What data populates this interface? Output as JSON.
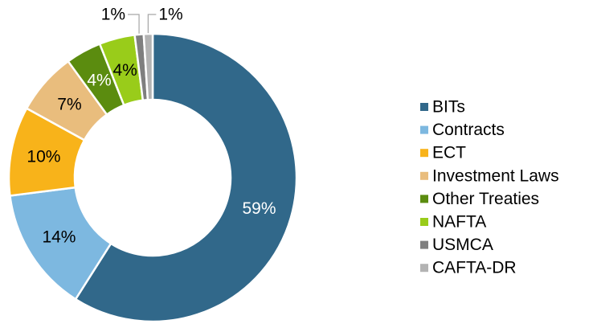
{
  "chart_data": {
    "type": "donut",
    "categories": [
      "BITs",
      "Contracts",
      "ECT",
      "Investment Laws",
      "Other Treaties",
      "NAFTA",
      "USMCA",
      "CAFTA-DR"
    ],
    "values": [
      59,
      14,
      10,
      7,
      4,
      4,
      1,
      1
    ],
    "value_labels": [
      "59%",
      "14%",
      "10%",
      "7%",
      "4%",
      "4%",
      "1%",
      "1%"
    ],
    "colors": [
      "#31688a",
      "#7db8e0",
      "#f8b31a",
      "#e9bd7d",
      "#5b8c0f",
      "#99cc1a",
      "#7f7f7f",
      "#b3b3b3"
    ],
    "legend": "right"
  }
}
